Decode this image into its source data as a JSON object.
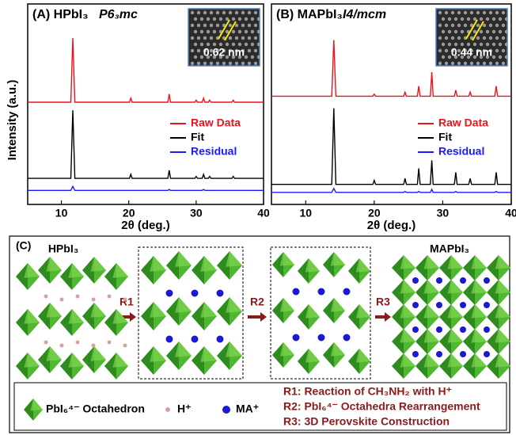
{
  "chart_data": [
    {
      "type": "line",
      "title": "(A) HPbI₃",
      "space_group": "P6₃mc",
      "inset_label": "0.62 nm",
      "ylabel": "Intensity (a.u.)",
      "xlabel": "2θ (deg.)",
      "xlim": [
        5,
        40
      ],
      "xticks": [
        10,
        20,
        30,
        40
      ],
      "ylim": [
        0,
        100
      ],
      "x": [
        5,
        11.4,
        11.7,
        12.0,
        20.1,
        20.3,
        20.5,
        25.8,
        26.0,
        26.2,
        29.8,
        30.0,
        30.2,
        30.9,
        31.1,
        31.3,
        31.8,
        32.0,
        32.2,
        35.3,
        35.5,
        35.7,
        40
      ],
      "series": [
        {
          "name": "Raw Data",
          "color": "#e8141b",
          "values": [
            51,
            51,
            83,
            51,
            51,
            53,
            51,
            51,
            55,
            51,
            51,
            52,
            51,
            51,
            53,
            51,
            51,
            52,
            51,
            51,
            52,
            51,
            51
          ]
        },
        {
          "name": "Fit",
          "color": "#000000",
          "values": [
            13,
            13,
            47,
            13,
            13,
            15,
            13,
            13,
            17,
            13,
            13,
            14,
            13,
            13,
            15,
            13,
            13,
            14,
            13,
            13,
            14,
            13,
            13
          ]
        },
        {
          "name": "Residual",
          "color": "#1a1aff",
          "values": [
            7,
            7,
            9,
            7,
            7,
            7,
            7,
            7,
            7.5,
            7,
            7,
            7,
            7,
            7,
            7.5,
            7,
            7,
            7,
            7,
            7,
            7,
            7,
            7
          ]
        }
      ]
    },
    {
      "type": "line",
      "title": "(B) MAPbI₃",
      "space_group": "I4/mcm",
      "inset_label": "0.44 nm",
      "xlabel": "2θ (deg.)",
      "xlim": [
        5,
        40
      ],
      "xticks": [
        10,
        20,
        30,
        40
      ],
      "ylim": [
        0,
        100
      ],
      "x": [
        5,
        13.8,
        14.1,
        14.4,
        19.8,
        20.0,
        20.2,
        24.3,
        24.5,
        24.7,
        26.3,
        26.5,
        26.7,
        28.2,
        28.4,
        28.6,
        31.7,
        31.9,
        32.1,
        33.8,
        34.0,
        34.2,
        37.6,
        37.8,
        38.0,
        40
      ],
      "series": [
        {
          "name": "Raw Data",
          "color": "#e8141b",
          "values": [
            54,
            54,
            82,
            54,
            54,
            55,
            54,
            54,
            56,
            54,
            54,
            59,
            54,
            54,
            66,
            54,
            54,
            57,
            54,
            54,
            56,
            54,
            54,
            59,
            54,
            54
          ]
        },
        {
          "name": "Fit",
          "color": "#000000",
          "values": [
            10,
            10,
            48,
            10,
            10,
            12,
            10,
            10,
            13,
            10,
            10,
            18,
            10,
            10,
            22,
            10,
            10,
            16,
            10,
            10,
            13,
            10,
            10,
            16,
            10,
            10
          ]
        },
        {
          "name": "Residual",
          "color": "#1a1aff",
          "values": [
            6,
            6,
            8,
            6,
            6,
            6,
            6,
            6,
            6.5,
            6,
            6,
            6.5,
            6,
            6,
            7.5,
            6,
            6,
            6.5,
            6,
            6,
            6,
            6,
            6,
            6.5,
            6,
            6
          ]
        }
      ]
    }
  ],
  "diagram": {
    "panel": "(C)",
    "start": "HPbI₃",
    "end": "MAPbI₃",
    "steps": [
      "R1",
      "R2",
      "R3"
    ],
    "legend": {
      "octahedron": "PbI₆⁴⁻ Octahedron",
      "proton": "H⁺",
      "ma": "MA⁺",
      "reactions": [
        "R1: Reaction of CH₃NH₂ with H⁺",
        "R2: PbI₆⁴⁻ Octahedra Rearrangement",
        "R3: 3D Perovskite Construction"
      ]
    }
  }
}
